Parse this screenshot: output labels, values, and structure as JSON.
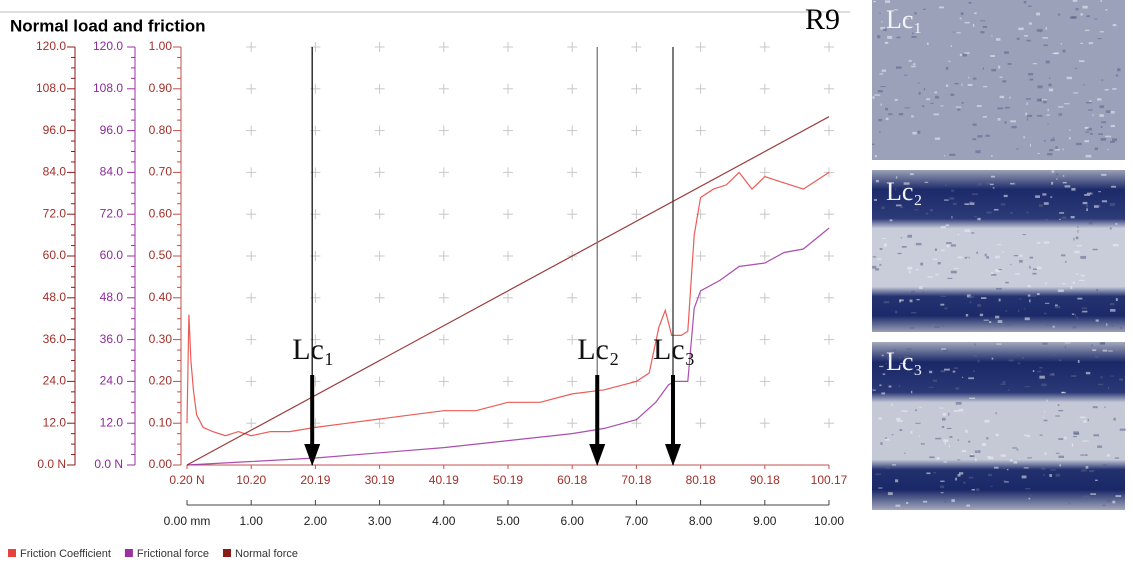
{
  "title": "Normal load and friction",
  "sample_label": "R9",
  "micrographs": [
    {
      "label": "Lc₁"
    },
    {
      "label": "Lc₂"
    },
    {
      "label": "Lc₃"
    }
  ],
  "chart_data": {
    "type": "line",
    "grid": true,
    "legend": "bottom-left",
    "xlim": [
      0,
      10
    ],
    "xticks": [
      {
        "value": 0,
        "label": "0.00 mm"
      },
      {
        "value": 1,
        "label": "1.00"
      },
      {
        "value": 2,
        "label": "2.00"
      },
      {
        "value": 3,
        "label": "3.00"
      },
      {
        "value": 4,
        "label": "4.00"
      },
      {
        "value": 5,
        "label": "5.00"
      },
      {
        "value": 6,
        "label": "6.00"
      },
      {
        "value": 7,
        "label": "7.00"
      },
      {
        "value": 8,
        "label": "8.00"
      },
      {
        "value": 9,
        "label": "9.00"
      },
      {
        "value": 10,
        "label": "10.00"
      }
    ],
    "x2lim": [
      0.2,
      100.17
    ],
    "x2ticks": [
      {
        "value": 0.2,
        "label": "0.20 N"
      },
      {
        "value": 10.2,
        "label": "10.20"
      },
      20.19,
      30.19,
      40.19,
      50.19,
      60.18,
      70.18,
      80.18,
      90.18,
      100.17
    ],
    "ylim": [
      0,
      120
    ],
    "yticks": [
      {
        "value": 0,
        "label": "0.0 N"
      },
      {
        "value": 12,
        "label": "12.0"
      },
      {
        "value": 24,
        "label": "24.0"
      },
      {
        "value": 36,
        "label": "36.0"
      },
      {
        "value": 48,
        "label": "48.0"
      },
      {
        "value": 60,
        "label": "60.0"
      },
      {
        "value": 72,
        "label": "72.0"
      },
      {
        "value": 84,
        "label": "84.0"
      },
      {
        "value": 96,
        "label": "96.0"
      },
      {
        "value": 108,
        "label": "108.0"
      },
      {
        "value": 120,
        "label": "120.0"
      }
    ],
    "y2lim": [
      0,
      120
    ],
    "y2ticks": [
      {
        "value": 0,
        "label": "0.0 N"
      },
      {
        "value": 12,
        "label": "12.0"
      },
      {
        "value": 24,
        "label": "24.0"
      },
      {
        "value": 36,
        "label": "36.0"
      },
      {
        "value": 48,
        "label": "48.0"
      },
      {
        "value": 60,
        "label": "60.0"
      },
      {
        "value": 72,
        "label": "72.0"
      },
      {
        "value": 84,
        "label": "84.0"
      },
      {
        "value": 96,
        "label": "96.0"
      },
      {
        "value": 108,
        "label": "108.0"
      },
      {
        "value": 120,
        "label": "120.0"
      }
    ],
    "y3lim": [
      0,
      1
    ],
    "y3ticks": [
      {
        "value": 0,
        "label": "0.00"
      },
      {
        "value": 0.1,
        "label": "0.10"
      },
      {
        "value": 0.2,
        "label": "0.20"
      },
      {
        "value": 0.3,
        "label": "0.30"
      },
      {
        "value": 0.4,
        "label": "0.40"
      },
      {
        "value": 0.5,
        "label": "0.50"
      },
      {
        "value": 0.6,
        "label": "0.60"
      },
      {
        "value": 0.7,
        "label": "0.70"
      },
      {
        "value": 0.8,
        "label": "0.80"
      },
      {
        "value": 0.9,
        "label": "0.90"
      },
      {
        "value": 1,
        "label": "1.00"
      }
    ],
    "series": [
      {
        "name": "Friction Coefficient",
        "color": "#e8403a",
        "axis": "y3",
        "x": [
          0,
          0.03,
          0.06,
          0.1,
          0.15,
          0.25,
          0.4,
          0.6,
          0.8,
          1.0,
          1.3,
          1.6,
          2.0,
          2.5,
          3.0,
          3.5,
          4.0,
          4.5,
          5.0,
          5.5,
          6.0,
          6.5,
          7.0,
          7.2,
          7.35,
          7.45,
          7.55,
          7.7,
          7.8,
          7.9,
          8.0,
          8.2,
          8.4,
          8.6,
          8.8,
          9.0,
          9.2,
          9.4,
          9.6,
          9.8,
          10.0
        ],
        "values": [
          0.1,
          0.36,
          0.25,
          0.18,
          0.12,
          0.09,
          0.08,
          0.07,
          0.08,
          0.07,
          0.08,
          0.08,
          0.09,
          0.1,
          0.11,
          0.12,
          0.13,
          0.13,
          0.15,
          0.15,
          0.17,
          0.18,
          0.2,
          0.22,
          0.33,
          0.37,
          0.31,
          0.31,
          0.32,
          0.55,
          0.64,
          0.66,
          0.67,
          0.7,
          0.66,
          0.69,
          0.68,
          0.67,
          0.66,
          0.68,
          0.7
        ]
      },
      {
        "name": "Frictional force",
        "color": "#9b30a0",
        "axis": "y2",
        "x": [
          0,
          1,
          2,
          3,
          4,
          5,
          6,
          6.5,
          7,
          7.3,
          7.5,
          7.6,
          7.7,
          7.8,
          7.9,
          8.0,
          8.3,
          8.6,
          9.0,
          9.3,
          9.6,
          10.0
        ],
        "values": [
          0,
          1,
          2,
          3.5,
          5,
          7,
          9,
          10.5,
          13,
          18,
          23,
          24,
          24,
          24,
          45,
          50,
          53,
          57,
          58,
          61,
          62,
          68
        ]
      },
      {
        "name": "Normal force",
        "color": "#8b1a1a",
        "axis": "y",
        "x": [
          0,
          10
        ],
        "values": [
          0,
          100
        ]
      }
    ],
    "annotations": [
      {
        "text": "Lc₁",
        "x": 1.95
      },
      {
        "text": "Lc₂",
        "x": 6.39
      },
      {
        "text": "Lc₃",
        "x": 7.57
      }
    ]
  }
}
